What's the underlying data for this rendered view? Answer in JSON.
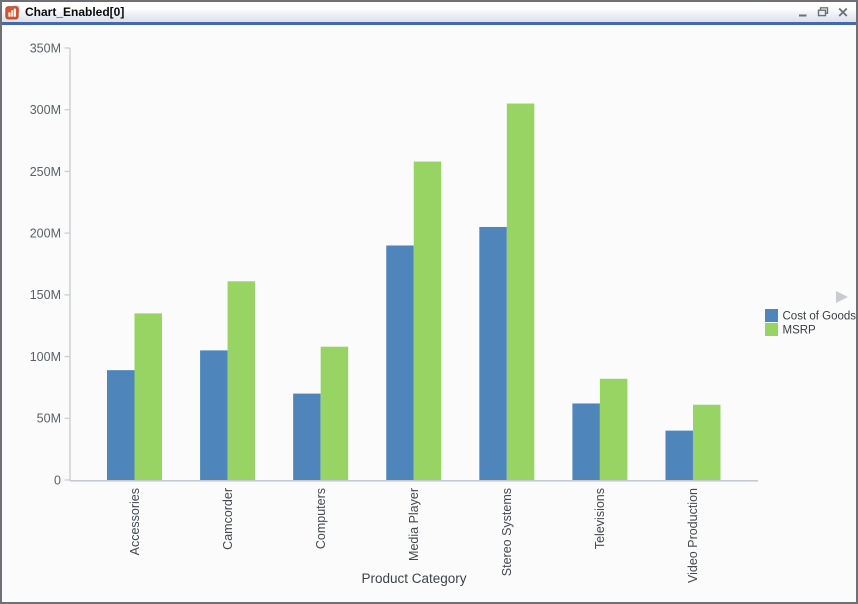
{
  "window": {
    "title": "Chart_Enabled[0]"
  },
  "icons": {
    "app": "chart-app-icon",
    "minimize": "minimize-icon",
    "restore": "restore-icon",
    "close": "close-icon",
    "legend_arrow": "legend-expand-arrow-icon"
  },
  "colors": {
    "frame_border": "#6e7073",
    "titlebar_accent": "#4269b1",
    "content_bg": "#fafbfa",
    "axis_line": "#c7cbd1",
    "tick_label": "#5c6167",
    "category_label": "#45494f",
    "xlabel_color": "#3f444a",
    "legend_text": "#3a3e43",
    "legend_arrow": "#c8cbcf",
    "series_blue": "#4e86bc",
    "series_green": "#97d464",
    "app_icon_orange": "#d6572d"
  },
  "chart_data": {
    "type": "bar",
    "title": "",
    "xlabel": "Product Category",
    "ylabel": "",
    "categories": [
      "Accessories",
      "Camcorder",
      "Computers",
      "Media Player",
      "Stereo Systems",
      "Televisions",
      "Video Production"
    ],
    "series": [
      {
        "name": "Cost of Goods",
        "color": "#4e86bc",
        "values": [
          89,
          105,
          70,
          190,
          205,
          62,
          40
        ]
      },
      {
        "name": "MSRP",
        "color": "#97d464",
        "values": [
          135,
          161,
          108,
          258,
          305,
          82,
          61
        ]
      }
    ],
    "value_unit": "M",
    "ylim": [
      0,
      350
    ],
    "y_tick_step": 50,
    "y_ticks": [
      "0",
      "50M",
      "100M",
      "150M",
      "200M",
      "250M",
      "300M",
      "350M"
    ],
    "grid": "off",
    "legend_position": "right"
  }
}
